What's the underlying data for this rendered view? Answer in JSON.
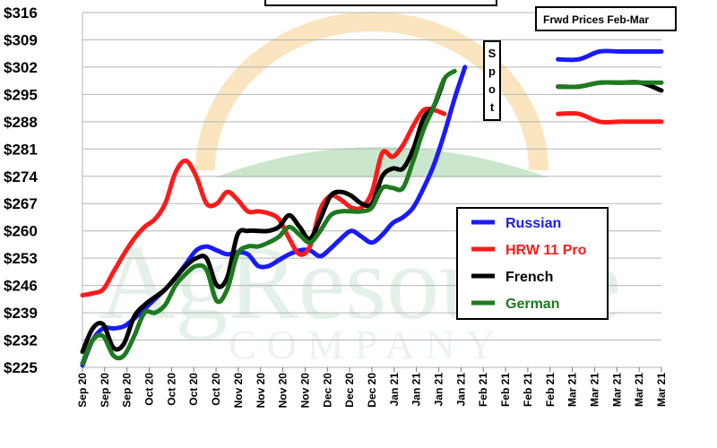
{
  "chart_data": {
    "type": "line",
    "y_tick_labels": [
      "$225",
      "$232",
      "$239",
      "$246",
      "$253",
      "$260",
      "$267",
      "$274",
      "$281",
      "$288",
      "$295",
      "$302",
      "$309",
      "$316"
    ],
    "y_ticks": [
      225,
      232,
      239,
      246,
      253,
      260,
      267,
      274,
      281,
      288,
      295,
      302,
      309,
      316
    ],
    "ylim": [
      225,
      316
    ],
    "x_tick_labels": [
      "Sep 20",
      "Sep 20",
      "Sep 20",
      "Oct 20",
      "Oct 20",
      "Oct 20",
      "Oct 20",
      "Nov 20",
      "Nov 20",
      "Nov 20",
      "Nov 20",
      "Dec 20",
      "Dec 20",
      "Dec 20",
      "Jan 21",
      "Jan 21",
      "Jan 21",
      "Jan 21",
      "Feb 21",
      "Feb 21",
      "Feb 21",
      "Feb 21",
      "Mar 21",
      "Mar 21",
      "Mar 21",
      "Mar 21",
      "Mar 21"
    ],
    "xlim": [
      0,
      28
    ],
    "grid": true,
    "spot_label": "Spot",
    "forward_label": "Frwd Prices Feb-Mar",
    "legend_position": "right",
    "series": [
      {
        "name": "Russian",
        "color": "#1a1aff",
        "x": [
          0,
          0.5,
          1,
          1.5,
          2,
          2.5,
          3,
          3.5,
          4,
          4.5,
          5,
          5.5,
          6,
          6.5,
          7,
          7.5,
          8,
          8.5,
          9,
          9.5,
          10,
          10.5,
          11,
          11.5,
          12,
          12.5,
          13,
          13.5,
          14,
          14.5,
          15,
          15.5,
          16,
          16.5,
          17,
          17.5,
          18,
          18.5,
          19,
          19.5,
          20,
          20.5,
          21,
          21.5,
          22,
          22.5,
          23,
          23.5,
          24,
          24.5,
          25,
          25.5,
          26,
          26.5,
          27,
          27.5,
          28
        ],
        "y": [
          225.5,
          232,
          235,
          235,
          235.5,
          237.5,
          240,
          242.5,
          245,
          248,
          251.5,
          255,
          256,
          255,
          254,
          254.5,
          254,
          251,
          251,
          252.5,
          254,
          255,
          255,
          253.5,
          255.5,
          258,
          260,
          258.5,
          257,
          259,
          262,
          263.5,
          266,
          271,
          277,
          285,
          294,
          302,
          null,
          null,
          null,
          null,
          null,
          null,
          null,
          null,
          null,
          null,
          null,
          null,
          null,
          null,
          null,
          null,
          null,
          null,
          null
        ],
        "forward_x": [
          23,
          24,
          25,
          26,
          27,
          28
        ],
        "forward_y": [
          304,
          304,
          306,
          306,
          306,
          306
        ]
      },
      {
        "name": "HRW 11 Pro",
        "color": "#ff1a1a",
        "x": [
          0,
          0.5,
          1,
          1.5,
          2,
          2.5,
          3,
          3.5,
          4,
          4.5,
          5,
          5.5,
          6,
          6.5,
          7,
          7.5,
          8,
          8.5,
          9,
          9.5,
          10,
          10.5,
          11,
          11.5,
          12,
          12.5,
          13,
          13.5,
          14,
          14.5,
          15,
          15.5,
          16,
          16.5,
          17,
          17.5,
          18,
          18.5,
          19,
          19.5,
          20,
          20.5,
          21,
          21.5,
          22,
          22.5,
          23,
          23.5,
          24,
          24.5,
          25,
          25.5,
          26,
          26.5,
          27,
          27.5,
          28
        ],
        "y": [
          243.5,
          244,
          245,
          249.5,
          254,
          258,
          261,
          263,
          267,
          275,
          278,
          274,
          267,
          267,
          270,
          268,
          265,
          265,
          264.5,
          263,
          258,
          254,
          256,
          265.5,
          269,
          268,
          266,
          266,
          270,
          280,
          279,
          282,
          287,
          291,
          291,
          290,
          null,
          null,
          null,
          null,
          null,
          null,
          null,
          null,
          null,
          null,
          null,
          null,
          null,
          null,
          null,
          null,
          null,
          null,
          null,
          null,
          null
        ],
        "forward_x": [
          23,
          24,
          25,
          26,
          27,
          28
        ],
        "forward_y": [
          290,
          290,
          288,
          288,
          288,
          288
        ]
      },
      {
        "name": "French",
        "color": "#000000",
        "x": [
          0,
          0.5,
          1,
          1.5,
          2,
          2.5,
          3,
          3.5,
          4,
          4.5,
          5,
          5.5,
          6,
          6.5,
          7,
          7.5,
          8,
          8.5,
          9,
          9.5,
          10,
          10.5,
          11,
          11.5,
          12,
          12.5,
          13,
          13.5,
          14,
          14.5,
          15,
          15.5,
          16,
          16.5,
          17,
          17.5,
          18,
          18.5,
          19,
          19.5,
          20,
          20.5,
          21,
          21.5,
          22,
          22.5,
          23,
          23.5,
          24,
          24.5,
          25,
          25.5,
          26,
          26.5,
          27,
          27.5,
          28
        ],
        "y": [
          229,
          235,
          236,
          230,
          231,
          238,
          241,
          243,
          245,
          248,
          251,
          253,
          253,
          246,
          248,
          259,
          260,
          260,
          260,
          261,
          264,
          261,
          258,
          263,
          269,
          270,
          269,
          267,
          267,
          274,
          276,
          276,
          281,
          289,
          292,
          299,
          null,
          null,
          null,
          null,
          null,
          null,
          null,
          null,
          null,
          null,
          null,
          null,
          null,
          null,
          null,
          null,
          null,
          null,
          null,
          null,
          null
        ],
        "forward_x": [
          23,
          24,
          25,
          26,
          27,
          28
        ],
        "forward_y": [
          297,
          297,
          298,
          298,
          298,
          296
        ]
      },
      {
        "name": "German",
        "color": "#1e7a1e",
        "x": [
          0,
          0.5,
          1,
          1.5,
          2,
          2.5,
          3,
          3.5,
          4,
          4.5,
          5,
          5.5,
          6,
          6.5,
          7,
          7.5,
          8,
          8.5,
          9,
          9.5,
          10,
          10.5,
          11,
          11.5,
          12,
          12.5,
          13,
          13.5,
          14,
          14.5,
          15,
          15.5,
          16,
          16.5,
          17,
          17.5,
          18,
          18.5,
          19,
          19.5,
          20,
          20.5,
          21,
          21.5,
          22,
          22.5,
          23,
          23.5,
          24,
          24.5,
          25,
          25.5,
          26,
          26.5,
          27,
          27.5,
          28
        ],
        "y": [
          226,
          232,
          233,
          228,
          228,
          233,
          239,
          239,
          241,
          246,
          249,
          251,
          250,
          242,
          245,
          254,
          256,
          256,
          257,
          258.5,
          261,
          259,
          257,
          260,
          264,
          265,
          265,
          265,
          266,
          271,
          271,
          271,
          278,
          286,
          292,
          299,
          301,
          null,
          null,
          null,
          null,
          null,
          null,
          null,
          null,
          null,
          null,
          null,
          null,
          null,
          null,
          null,
          null,
          null,
          null,
          null,
          null
        ],
        "forward_x": [
          23,
          24,
          25,
          26,
          27,
          28
        ],
        "forward_y": [
          297,
          297,
          298,
          298,
          298,
          298
        ]
      }
    ]
  },
  "watermark": {
    "name": "AgResource",
    "sub": "COMPANY"
  },
  "colors": {
    "grid": "#b5b5b5",
    "sun": "#f6d08c",
    "leaf": "#9fd4a6"
  }
}
